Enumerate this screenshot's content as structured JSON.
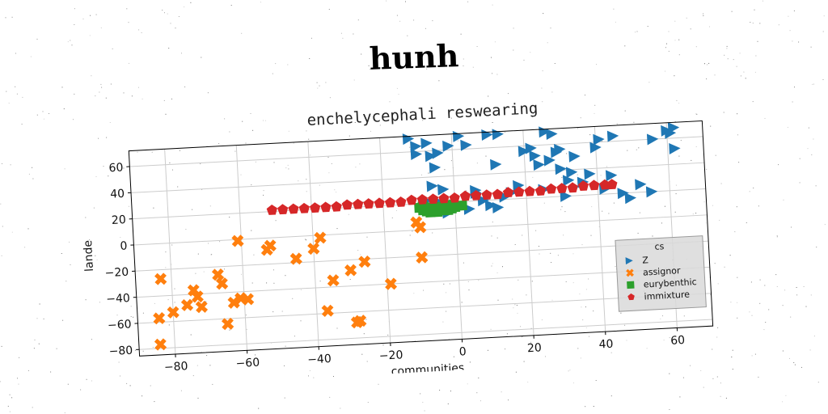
{
  "figure": {
    "title": "hunh"
  },
  "chart_data": {
    "type": "scatter",
    "title": "enchelycephali reswearing",
    "xlabel": "communities",
    "ylabel": "lande",
    "xlim": [
      -90,
      70
    ],
    "ylim": [
      -85,
      72
    ],
    "xticks": [
      -80,
      -60,
      -40,
      -20,
      0,
      20,
      40,
      60
    ],
    "yticks": [
      -80,
      -60,
      -40,
      -20,
      0,
      20,
      40,
      60
    ],
    "grid": true,
    "legend": {
      "title": "cs",
      "placement": "lower-right"
    },
    "series": [
      {
        "name": "Z",
        "marker": "triangle-right",
        "color": "#1f77b4",
        "points": [
          [
            -12,
            70
          ],
          [
            -10,
            64
          ],
          [
            -7,
            66
          ],
          [
            -10,
            58
          ],
          [
            -6,
            56
          ],
          [
            -5,
            47
          ],
          [
            -4,
            58
          ],
          [
            -6,
            33
          ],
          [
            -3,
            30
          ],
          [
            -1,
            63
          ],
          [
            2,
            70
          ],
          [
            4,
            63
          ],
          [
            6,
            28
          ],
          [
            10,
            70
          ],
          [
            12,
            47
          ],
          [
            13,
            70
          ],
          [
            16,
            25
          ],
          [
            18,
            30
          ],
          [
            20,
            56
          ],
          [
            22,
            58
          ],
          [
            23,
            52
          ],
          [
            24,
            45
          ],
          [
            25,
            26
          ],
          [
            26,
            70
          ],
          [
            27,
            48
          ],
          [
            28,
            68
          ],
          [
            29,
            54
          ],
          [
            30,
            56
          ],
          [
            30,
            41
          ],
          [
            31,
            20
          ],
          [
            32,
            32
          ],
          [
            33,
            38
          ],
          [
            34,
            50
          ],
          [
            36,
            30
          ],
          [
            38,
            36
          ],
          [
            40,
            56
          ],
          [
            41,
            62
          ],
          [
            42,
            24
          ],
          [
            44,
            34
          ],
          [
            45,
            64
          ],
          [
            47,
            20
          ],
          [
            49,
            16
          ],
          [
            52,
            26
          ],
          [
            55,
            20
          ],
          [
            56,
            60
          ],
          [
            60,
            66
          ],
          [
            61,
            64
          ],
          [
            62,
            68
          ],
          [
            62,
            52
          ],
          [
            -8,
            22
          ],
          [
            -4,
            20
          ],
          [
            0,
            18
          ],
          [
            -2,
            12
          ],
          [
            4,
            14
          ],
          [
            8,
            20
          ],
          [
            10,
            16
          ],
          [
            12,
            14
          ],
          [
            14,
            22
          ],
          [
            -6,
            16
          ],
          [
            6,
            26
          ]
        ]
      },
      {
        "name": "assignor",
        "marker": "x",
        "color": "#ff7f0e",
        "points": [
          [
            -83,
            -27
          ],
          [
            -84,
            -57
          ],
          [
            -84,
            -77
          ],
          [
            -80,
            -53
          ],
          [
            -76,
            -48
          ],
          [
            -74,
            -37
          ],
          [
            -73,
            -42
          ],
          [
            -72,
            -50
          ],
          [
            -67,
            -26
          ],
          [
            -66,
            -33
          ],
          [
            -65,
            -64
          ],
          [
            -63,
            -48
          ],
          [
            -61,
            -45
          ],
          [
            -59,
            -46
          ],
          [
            -61,
            -1
          ],
          [
            -53,
            -9
          ],
          [
            -52,
            -6
          ],
          [
            -45,
            -17
          ],
          [
            -40,
            -10
          ],
          [
            -38,
            -2
          ],
          [
            -37,
            -58
          ],
          [
            -35,
            -35
          ],
          [
            -30,
            -28
          ],
          [
            -29,
            -68
          ],
          [
            -28,
            -67
          ],
          [
            -26,
            -22
          ],
          [
            -19,
            -40
          ],
          [
            -10,
            -21
          ],
          [
            -10,
            2
          ],
          [
            -11,
            6
          ]
        ]
      },
      {
        "name": "eurybenthic",
        "marker": "square",
        "color": "#2ca02c",
        "points": [
          [
            -10,
            17
          ],
          [
            -9,
            15
          ],
          [
            -8,
            14
          ],
          [
            -7,
            13
          ],
          [
            -6,
            15
          ],
          [
            -5,
            13
          ],
          [
            -4,
            14
          ],
          [
            -3,
            15
          ],
          [
            -2,
            14
          ],
          [
            -1,
            15
          ],
          [
            0,
            16
          ],
          [
            1,
            17
          ],
          [
            2,
            17
          ],
          [
            -9,
            18
          ],
          [
            -7,
            17
          ],
          [
            -5,
            17
          ],
          [
            -3,
            17
          ],
          [
            -1,
            18
          ]
        ]
      },
      {
        "name": "immixture",
        "marker": "pentagon",
        "color": "#d62728",
        "points": [
          [
            -51,
            21
          ],
          [
            -48,
            21
          ],
          [
            -45,
            21
          ],
          [
            -42,
            21
          ],
          [
            -39,
            21
          ],
          [
            -36,
            21
          ],
          [
            -33,
            21
          ],
          [
            -30,
            22
          ],
          [
            -27,
            22
          ],
          [
            -24,
            22
          ],
          [
            -21,
            22
          ],
          [
            -18,
            22
          ],
          [
            -15,
            22
          ],
          [
            -12,
            23
          ],
          [
            -9,
            23
          ],
          [
            -6,
            23
          ],
          [
            -3,
            23
          ],
          [
            0,
            23
          ],
          [
            3,
            24
          ],
          [
            6,
            24
          ],
          [
            9,
            24
          ],
          [
            12,
            24
          ],
          [
            15,
            25
          ],
          [
            18,
            25
          ],
          [
            21,
            25
          ],
          [
            24,
            25
          ],
          [
            27,
            26
          ],
          [
            30,
            26
          ],
          [
            33,
            26
          ],
          [
            36,
            27
          ],
          [
            39,
            27
          ],
          [
            42,
            27
          ],
          [
            44,
            27
          ]
        ]
      }
    ]
  }
}
